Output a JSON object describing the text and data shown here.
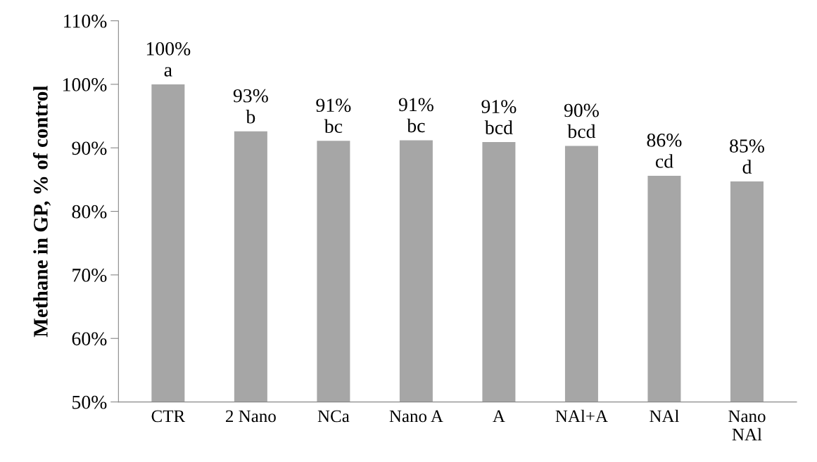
{
  "chart_data": {
    "type": "bar",
    "ylabel": "Methane in GP, % of control",
    "categories": [
      "CTR",
      "2 Nano",
      "NCa",
      "Nano A",
      "A",
      "NAl+A",
      "NAl",
      "Nano\nNAl"
    ],
    "values": [
      100,
      92.6,
      91.1,
      91.2,
      90.9,
      90.3,
      85.6,
      84.7
    ],
    "value_labels": [
      "100%\na",
      "93%\nb",
      "91%\nbc",
      "91%\nbc",
      "91%\nbcd",
      "90%\nbcd",
      "86%\ncd",
      "85%\nd"
    ],
    "color": "#a6a6a6",
    "ylim": [
      50,
      110
    ],
    "yticks": [
      {
        "value": 50,
        "label": "50%"
      },
      {
        "value": 60,
        "label": "60%"
      },
      {
        "value": 70,
        "label": "70%"
      },
      {
        "value": 80,
        "label": "80%"
      },
      {
        "value": 90,
        "label": "90%"
      },
      {
        "value": 100,
        "label": "100%"
      },
      {
        "value": 110,
        "label": "110%"
      }
    ],
    "grid": false,
    "legend": false
  }
}
